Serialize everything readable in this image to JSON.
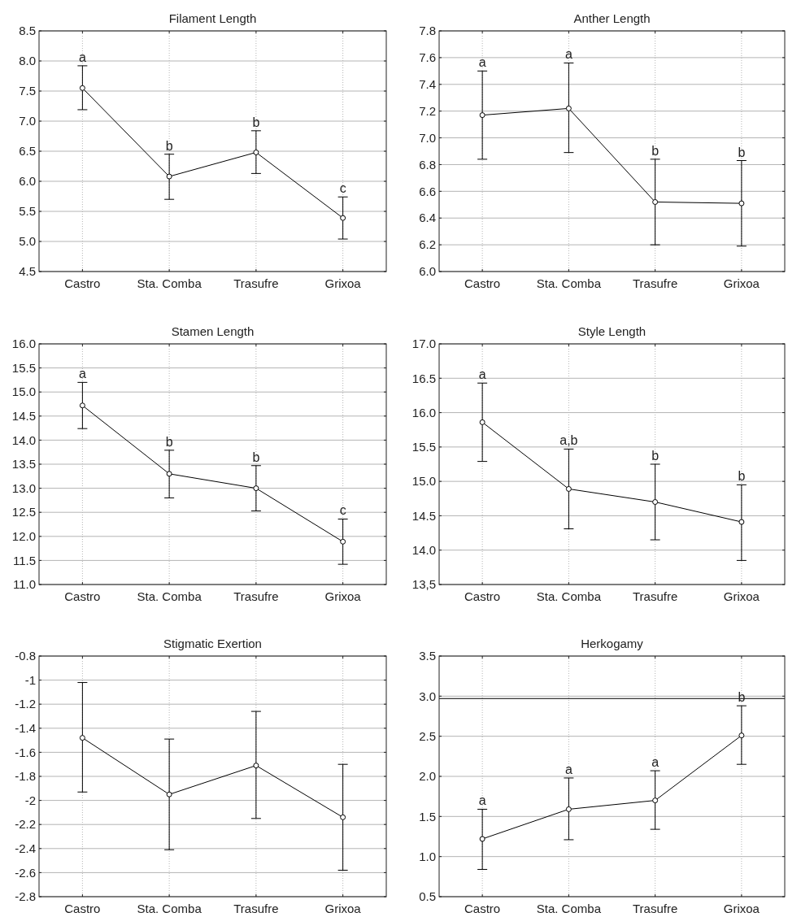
{
  "chart_data": [
    {
      "type": "line",
      "title": "Filament Length",
      "categories": [
        "Castro",
        "Sta. Comba",
        "Trasufre",
        "Grixoa"
      ],
      "series": [
        {
          "color": "#000000",
          "values": [
            7.55,
            6.08,
            6.48,
            5.39
          ],
          "errors": [
            [
              7.19,
              7.92
            ],
            [
              5.7,
              6.45
            ],
            [
              6.13,
              6.84
            ],
            [
              5.04,
              5.74
            ]
          ]
        }
      ],
      "ylim": [
        4.5,
        8.5
      ],
      "yticks": [
        {
          "value": 4.5,
          "label": "4.5"
        },
        {
          "value": 5,
          "label": "5.0"
        },
        {
          "value": 5.5,
          "label": "5.5"
        },
        {
          "value": 6,
          "label": "6.0"
        },
        {
          "value": 6.5,
          "label": "6.5"
        },
        {
          "value": 7,
          "label": "7.0"
        },
        {
          "value": 7.5,
          "label": "7.5"
        },
        {
          "value": 8,
          "label": "8.0"
        },
        {
          "value": 8.5,
          "label": "8.5"
        }
      ],
      "grid": true,
      "marker": "circle",
      "line_style": "solid",
      "annotations": [
        {
          "text": "a",
          "x": "Castro",
          "y": 7.92
        },
        {
          "text": "b",
          "x": "Sta. Comba",
          "y": 6.45
        },
        {
          "text": "b",
          "x": "Trasufre",
          "y": 6.84
        },
        {
          "text": "c",
          "x": "Grixoa",
          "y": 5.74
        }
      ]
    },
    {
      "type": "line",
      "title": "Anther Length",
      "categories": [
        "Castro",
        "Sta. Comba",
        "Trasufre",
        "Grixoa"
      ],
      "series": [
        {
          "color": "#000000",
          "values": [
            7.17,
            7.22,
            6.52,
            6.51
          ],
          "errors": [
            [
              6.84,
              7.5
            ],
            [
              6.89,
              7.56
            ],
            [
              6.2,
              6.84
            ],
            [
              6.19,
              6.83
            ]
          ]
        }
      ],
      "ylim": [
        6.0,
        7.8
      ],
      "yticks": [
        {
          "value": 6,
          "label": "6.0"
        },
        6.2,
        6.4,
        6.6,
        6.8,
        {
          "value": 7,
          "label": "7.0"
        },
        7.2,
        7.4,
        7.6,
        7.8
      ],
      "grid": true,
      "marker": "circle",
      "line_style": "solid",
      "annotations": [
        {
          "text": "a",
          "x": "Castro",
          "y": 7.5
        },
        {
          "text": "a",
          "x": "Sta. Comba",
          "y": 7.56
        },
        {
          "text": "b",
          "x": "Trasufre",
          "y": 6.84
        },
        {
          "text": "b",
          "x": "Grixoa",
          "y": 6.83
        }
      ]
    },
    {
      "type": "line",
      "title": "Stamen Length",
      "categories": [
        "Castro",
        "Sta. Comba",
        "Trasufre",
        "Grixoa"
      ],
      "series": [
        {
          "color": "#000000",
          "values": [
            14.72,
            13.3,
            13.0,
            11.89
          ],
          "errors": [
            [
              14.24,
              15.2
            ],
            [
              12.8,
              13.79
            ],
            [
              12.53,
              13.47
            ],
            [
              11.42,
              12.36
            ]
          ]
        }
      ],
      "ylim": [
        11,
        16
      ],
      "yticks": [
        {
          "value": 11,
          "label": "11.0"
        },
        11.5,
        {
          "value": 12,
          "label": "12.0"
        },
        12.5,
        {
          "value": 13,
          "label": "13.0"
        },
        13.5,
        {
          "value": 14,
          "label": "14.0"
        },
        14.5,
        {
          "value": 15,
          "label": "15.0"
        },
        15.5,
        {
          "value": 16,
          "label": "16.0"
        }
      ],
      "grid": true,
      "marker": "circle",
      "line_style": "solid",
      "annotations": [
        {
          "text": "a",
          "x": "Castro",
          "y": 15.2
        },
        {
          "text": "b",
          "x": "Sta. Comba",
          "y": 13.79
        },
        {
          "text": "b",
          "x": "Trasufre",
          "y": 13.47
        },
        {
          "text": "c",
          "x": "Grixoa",
          "y": 12.36
        }
      ]
    },
    {
      "type": "line",
      "title": "Style Length",
      "categories": [
        "Castro",
        "Sta. Comba",
        "Trasufre",
        "Grixoa"
      ],
      "series": [
        {
          "color": "#000000",
          "values": [
            15.86,
            14.89,
            14.7,
            14.41
          ],
          "errors": [
            [
              15.29,
              16.43
            ],
            [
              14.31,
              15.47
            ],
            [
              14.15,
              15.25
            ],
            [
              13.85,
              14.95
            ]
          ]
        }
      ],
      "ylim": [
        13.5,
        17
      ],
      "yticks": [
        {
          "value": 13.5,
          "label": "13,5"
        },
        {
          "value": 14,
          "label": "14.0"
        },
        14.5,
        {
          "value": 15,
          "label": "15.0"
        },
        15.5,
        {
          "value": 16,
          "label": "16.0"
        },
        16.5,
        {
          "value": 17,
          "label": "17.0"
        }
      ],
      "grid": true,
      "marker": "circle",
      "line_style": "solid",
      "annotations": [
        {
          "text": "a",
          "x": "Castro",
          "y": 16.43
        },
        {
          "text": "a,b",
          "x": "Sta. Comba",
          "y": 15.47
        },
        {
          "text": "b",
          "x": "Trasufre",
          "y": 15.25
        },
        {
          "text": "b",
          "x": "Grixoa",
          "y": 14.95
        }
      ]
    },
    {
      "type": "line",
      "title": "Stigmatic Exertion",
      "categories": [
        "Castro",
        "Sta. Comba",
        "Trasufre",
        "Grixoa"
      ],
      "series": [
        {
          "color": "#000000",
          "values": [
            -1.48,
            -1.95,
            -1.71,
            -2.14
          ],
          "errors": [
            [
              -1.93,
              -1.02
            ],
            [
              -2.41,
              -1.49
            ],
            [
              -2.15,
              -1.26
            ],
            [
              -2.58,
              -1.7
            ]
          ]
        }
      ],
      "ylim": [
        -2.8,
        -0.8
      ],
      "yticks": [
        -2.8,
        -2.6,
        -2.4,
        -2.2,
        -2,
        -1.8,
        -1.6,
        -1.4,
        -1.2,
        -1,
        -0.8
      ],
      "grid": true,
      "marker": "circle",
      "line_style": "solid"
    },
    {
      "type": "line",
      "title": "Herkogamy",
      "categories": [
        "Castro",
        "Sta. Comba",
        "Trasufre",
        "Grixoa"
      ],
      "series": [
        {
          "color": "#000000",
          "values": [
            1.22,
            1.59,
            1.7,
            2.51
          ],
          "errors": [
            [
              0.84,
              1.59
            ],
            [
              1.21,
              1.98
            ],
            [
              1.34,
              2.07
            ],
            [
              2.15,
              2.88
            ]
          ]
        }
      ],
      "ylim": [
        0.5,
        3.5
      ],
      "yticks": [
        {
          "value": 0.5,
          "label": "0.5"
        },
        {
          "value": 1,
          "label": "1.0"
        },
        1.5,
        {
          "value": 2,
          "label": "2.0"
        },
        2.5,
        {
          "value": 3,
          "label": "3.0"
        },
        3.5
      ],
      "grid": true,
      "marker": "circle",
      "line_style": "solid",
      "ref_lines": [
        {
          "axis": "y",
          "value": 2.97,
          "color": "#000000"
        }
      ],
      "annotations": [
        {
          "text": "a",
          "x": "Castro",
          "y": 1.59
        },
        {
          "text": "a",
          "x": "Sta. Comba",
          "y": 1.98
        },
        {
          "text": "a",
          "x": "Trasufre",
          "y": 2.07
        },
        {
          "text": "b",
          "x": "Grixoa",
          "y": 2.88
        }
      ]
    }
  ]
}
